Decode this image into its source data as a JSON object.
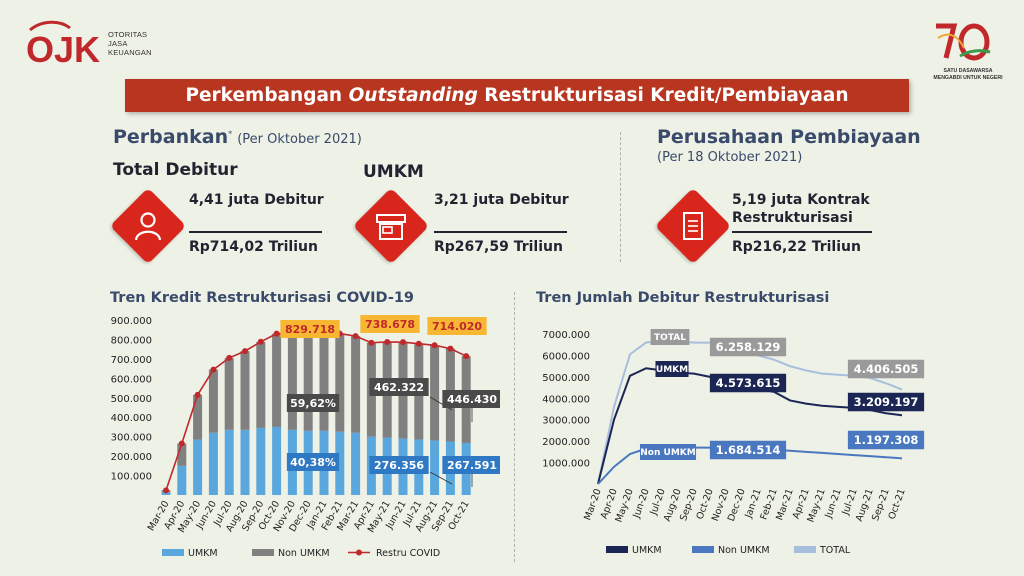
{
  "brand": {
    "logo_mark": "OJK",
    "logo_lines": [
      "OTORITAS",
      "JASA",
      "KEUANGAN"
    ],
    "anniversary_lines": [
      "SATU DASAWARSA",
      "MENGABDI UNTUK NEGERI"
    ]
  },
  "banner": {
    "title_part1": "Perkembangan ",
    "title_italic": "Outstanding",
    "title_part2": " Restrukturisasi Kredit/Pembiayaan"
  },
  "perbankan": {
    "title": "Perbankan",
    "asterisk": "*",
    "period": "(Per Oktober 2021)",
    "total": {
      "title": "Total Debitur",
      "debitur": "4,41 juta Debitur",
      "nilai": "Rp714,02 Triliun",
      "icon": "person-icon"
    },
    "umkm": {
      "title": "UMKM",
      "debitur": "3,21 juta Debitur",
      "nilai": "Rp267,59 Triliun",
      "icon": "shop-icon"
    }
  },
  "pembiayaan": {
    "title": "Perusahaan Pembiayaan",
    "period": "(Per 18 Oktober 2021)",
    "kontrak_line1": "5,19 juta Kontrak",
    "kontrak_line2": "Restrukturisasi",
    "nilai": "Rp216,22 Triliun",
    "icon": "document-icon"
  },
  "colors": {
    "umkm": "#5aa7de",
    "non_umkm": "#808080",
    "restru": "#c0282c",
    "banner": "#b8351f",
    "highlight": "#f7b733",
    "label_dark": "#4a4a4a",
    "label_blue": "#2f79c4",
    "total_line": "#a8bedd",
    "umkm_line": "#1c2654",
    "nonumkm_line": "#4a78c0"
  },
  "chart_data": [
    {
      "type": "bar",
      "title": "Tren Kredit Restrukturisasi COVID-19",
      "categories": [
        "Mar-20",
        "Apr-20",
        "May-20",
        "Jun-20",
        "Jul-20",
        "Aug-20",
        "Sep-20",
        "Oct-20",
        "Nov-20",
        "Dec-20",
        "Jan-21",
        "Feb-21",
        "Mar-21",
        "Apr-21",
        "May-21",
        "Jun-21",
        "Jul-21",
        "Aug-21",
        "Sep-21",
        "Oct-21"
      ],
      "y_ticks": [
        "900.000",
        "800.000",
        "700.000",
        "600.000",
        "500.000",
        "400.000",
        "300.000",
        "200.000",
        "100.000"
      ],
      "ylim": [
        0,
        900000
      ],
      "stacked": true,
      "series": [
        {
          "name": "UMKM",
          "type": "bar",
          "values": [
            15000,
            150000,
            285000,
            320000,
            335000,
            335000,
            345000,
            350000,
            335000,
            330000,
            330000,
            325000,
            320000,
            300000,
            295000,
            290000,
            285000,
            280000,
            275000,
            267591
          ]
        },
        {
          "name": "Non UMKM",
          "type": "bar",
          "values": [
            9000,
            115000,
            230000,
            325000,
            370000,
            405000,
            443000,
            480000,
            494718,
            500000,
            500000,
            505000,
            497000,
            483000,
            492000,
            496000,
            493000,
            490000,
            478020,
            446430
          ]
        },
        {
          "name": "Restru COVID",
          "type": "line",
          "values": [
            24000,
            265000,
            515000,
            645000,
            705000,
            740000,
            788000,
            830000,
            829718,
            830000,
            830000,
            830000,
            817000,
            783000,
            787000,
            786000,
            778000,
            770000,
            753020,
            714020
          ]
        }
      ],
      "annotations": [
        {
          "text": "829.718",
          "style": "highlight"
        },
        {
          "text": "738.678",
          "style": "highlight"
        },
        {
          "text": "714.020",
          "style": "highlight"
        },
        {
          "text": "59,62%",
          "style": "dark"
        },
        {
          "text": "40,38%",
          "style": "blue"
        },
        {
          "text": "462.322",
          "style": "dark"
        },
        {
          "text": "446.430",
          "style": "dark"
        },
        {
          "text": "276.356",
          "style": "blue"
        },
        {
          "text": "267.591",
          "style": "blue"
        }
      ],
      "legend": [
        "UMKM",
        "Non UMKM",
        "Restru COVID"
      ],
      "legend_position": "bottom"
    },
    {
      "type": "line",
      "title": "Tren Jumlah Debitur Restrukturisasi",
      "categories": [
        "Mar-20",
        "Apr-20",
        "May-20",
        "Jun-20",
        "Jul-20",
        "Aug-20",
        "Sep-20",
        "Oct-20",
        "Nov-20",
        "Dec-20",
        "Jan-21",
        "Feb-21",
        "Mar-21",
        "Apr-21",
        "May-21",
        "Jun-21",
        "Jul-21",
        "Aug-21",
        "Sep-21",
        "Oct-21"
      ],
      "y_ticks": [
        "7000.000",
        "6000.000",
        "5000.000",
        "4000.000",
        "3000.000",
        "2000.000",
        "1000.000"
      ],
      "ylim": [
        0,
        7000000
      ],
      "series": [
        {
          "name": "TOTAL",
          "values": [
            0,
            3600000,
            6050000,
            6600000,
            6700000,
            6650000,
            6600000,
            6600000,
            6258129,
            6150000,
            6000000,
            5800000,
            5500000,
            5300000,
            5150000,
            5100000,
            5050000,
            4950000,
            4700000,
            4406505
          ]
        },
        {
          "name": "UMKM",
          "values": [
            0,
            3000000,
            5050000,
            5400000,
            5300000,
            5200000,
            5150000,
            5000000,
            4573615,
            4500000,
            4450000,
            4300000,
            3900000,
            3750000,
            3650000,
            3600000,
            3550000,
            3450000,
            3300000,
            3209197
          ]
        },
        {
          "name": "Non UMKM",
          "values": [
            0,
            800000,
            1400000,
            1650000,
            1700000,
            1700000,
            1700000,
            1700000,
            1684514,
            1680000,
            1650000,
            1600000,
            1550000,
            1500000,
            1450000,
            1400000,
            1350000,
            1300000,
            1250000,
            1197308
          ]
        }
      ],
      "annotations": [
        {
          "text": "TOTAL",
          "style": "gray"
        },
        {
          "text": "UMKM",
          "style": "navy"
        },
        {
          "text": "Non UMKM",
          "style": "blue"
        },
        {
          "text": "6.258.129",
          "style": "gray"
        },
        {
          "text": "4.573.615",
          "style": "navy"
        },
        {
          "text": "1.684.514",
          "style": "blue"
        },
        {
          "text": "4.406.505",
          "style": "gray"
        },
        {
          "text": "3.209.197",
          "style": "navy"
        },
        {
          "text": "1.197.308",
          "style": "blue"
        }
      ],
      "legend": [
        "UMKM",
        "Non UMKM",
        "TOTAL"
      ],
      "legend_position": "bottom"
    }
  ]
}
